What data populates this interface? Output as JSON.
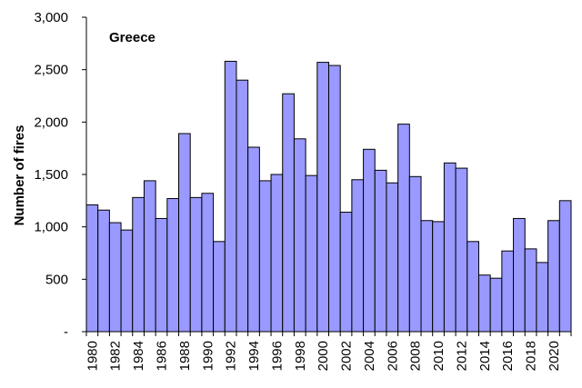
{
  "chart_data": {
    "type": "bar",
    "title": "Greece",
    "ylabel": "Number of fires",
    "xlabel": "",
    "ylim": [
      0,
      3000
    ],
    "yticks": [
      0,
      500,
      1000,
      1500,
      2000,
      2500,
      3000
    ],
    "ytick_labels": [
      "-",
      "500",
      "1,000",
      "1,500",
      "2,000",
      "2,500",
      "3,000"
    ],
    "xtick_labels": [
      "1980",
      "1982",
      "1984",
      "1986",
      "1988",
      "1990",
      "1992",
      "1994",
      "1996",
      "1998",
      "2000",
      "2002",
      "2004",
      "2006",
      "2008",
      "2010",
      "2012",
      "2014",
      "2016",
      "2018",
      "2020"
    ],
    "categories": [
      "1980",
      "1981",
      "1982",
      "1983",
      "1984",
      "1985",
      "1986",
      "1987",
      "1988",
      "1989",
      "1990",
      "1991",
      "1992",
      "1993",
      "1994",
      "1995",
      "1996",
      "1997",
      "1998",
      "1999",
      "2000",
      "2001",
      "2002",
      "2003",
      "2004",
      "2005",
      "2006",
      "2007",
      "2008",
      "2009",
      "2010",
      "2011",
      "2012",
      "2013",
      "2014",
      "2015",
      "2016",
      "2017",
      "2018",
      "2019",
      "2020",
      "2021"
    ],
    "values": [
      1210,
      1160,
      1040,
      970,
      1280,
      1440,
      1080,
      1270,
      1890,
      1280,
      1320,
      860,
      2580,
      2400,
      1760,
      1440,
      1500,
      2270,
      1840,
      1490,
      2570,
      2540,
      1140,
      1450,
      1740,
      1540,
      1420,
      1980,
      1480,
      1060,
      1050,
      1610,
      1560,
      860,
      540,
      510,
      770,
      1080,
      790,
      660,
      1060,
      1250
    ],
    "colors": {
      "bar_fill": "#9999ff",
      "bar_stroke": "#000000",
      "axis": "#000000"
    },
    "grid": false,
    "legend": "none"
  }
}
